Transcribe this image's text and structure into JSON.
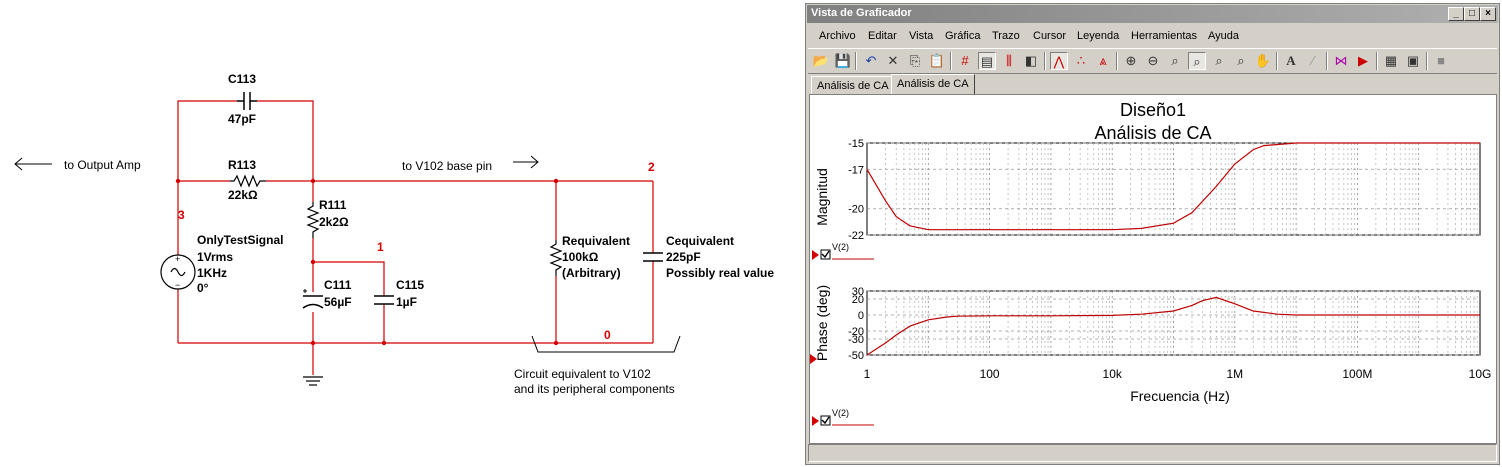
{
  "schematic": {
    "to_output_amp": "to Output Amp",
    "to_v102": "to V102 base pin",
    "circuit_note_1": "Circuit equivalent to V102",
    "circuit_note_2": "and its peripheral components",
    "nodes": {
      "n3": "3",
      "n1": "1",
      "n2": "2",
      "n0": "0"
    },
    "c113": {
      "name": "C113",
      "value": "47pF"
    },
    "r113": {
      "name": "R113",
      "value": "22kΩ"
    },
    "r111": {
      "name": "R111",
      "value": "2k2Ω"
    },
    "c111": {
      "name": "C111",
      "value": "56µF"
    },
    "c115": {
      "name": "C115",
      "value": "1µF"
    },
    "source": {
      "name": "OnlyTestSignal",
      "amp": "1Vrms",
      "freq": "1KHz",
      "phase": "0°"
    },
    "requiv": {
      "name": "Requivalent",
      "value": "100kΩ",
      "note": "(Arbitrary)"
    },
    "cequiv": {
      "name": "Cequivalent",
      "value": "225pF",
      "note": "Possibly real value"
    },
    "wire_color": "#d40000"
  },
  "window": {
    "title": "Vista de Graficador",
    "menu": [
      "Archivo",
      "Editar",
      "Vista",
      "Gráfica",
      "Trazo",
      "Cursor",
      "Leyenda",
      "Herramientas",
      "Ayuda"
    ],
    "tabs": [
      "Análisis de CA",
      "Análisis de CA"
    ],
    "active_tab": 1,
    "toolbar_icons": [
      "open-icon",
      "save-icon",
      "undo-icon",
      "cut-icon",
      "copy-icon",
      "paste-icon",
      "grid-icon",
      "legend-icon",
      "cursors-icon",
      "overlay-icon",
      "trace-line-icon",
      "markers-icon",
      "markers-lines-icon",
      "zoom-in-icon",
      "zoom-out-icon",
      "zoom-fit-icon",
      "zoom-x-icon",
      "zoom-y-icon",
      "zoom-area-icon",
      "pan-icon",
      "text-icon",
      "export-icon",
      "trace-props-icon",
      "reverse-icon",
      "print-preview-icon",
      "print-icon",
      "stop-icon"
    ]
  },
  "plot": {
    "title1": "Diseño1",
    "title2": "Análisis de CA",
    "mag_ylabel": "Magnitud",
    "phase_ylabel": "Phase (deg)",
    "xlabel": "Frecuencia (Hz)",
    "legend": "V(2)"
  },
  "chart_data": [
    {
      "type": "line",
      "title": "Diseño1 Análisis de CA",
      "xlabel": "Frecuencia (Hz)",
      "ylabel": "Magnitud",
      "xscale": "log",
      "xlim": [
        1,
        10000000000
      ],
      "ylim": [
        -22,
        -15
      ],
      "yticks": [
        -15,
        -17,
        -20,
        -22
      ],
      "grid": true,
      "series": [
        {
          "name": "V(2)",
          "color": "#c00000",
          "x": [
            1,
            2,
            3,
            5,
            10,
            20,
            100,
            1000,
            10000,
            30000,
            100000,
            200000,
            500000,
            1000000,
            2000000,
            3000000,
            10000000,
            100000000,
            1000000000,
            10000000000
          ],
          "y": [
            -17.0,
            -19.4,
            -20.6,
            -21.3,
            -21.6,
            -21.6,
            -21.6,
            -21.6,
            -21.6,
            -21.5,
            -21.1,
            -20.3,
            -18.3,
            -16.6,
            -15.5,
            -15.2,
            -15.0,
            -15.0,
            -15.0,
            -15.0
          ]
        }
      ]
    },
    {
      "type": "line",
      "xlabel": "Frecuencia (Hz)",
      "ylabel": "Phase (deg)",
      "xscale": "log",
      "xlim": [
        1,
        10000000000
      ],
      "ylim": [
        -50,
        30
      ],
      "yticks": [
        30,
        20,
        0,
        -20,
        -30,
        -50
      ],
      "grid": true,
      "series": [
        {
          "name": "V(2)",
          "color": "#c00000",
          "x": [
            1,
            2,
            3,
            5,
            10,
            20,
            30,
            100,
            1000,
            10000,
            30000,
            100000,
            200000,
            300000,
            500000,
            1000000,
            2000000,
            5000000,
            10000000,
            100000000,
            10000000000
          ],
          "y": [
            -50,
            -35,
            -25,
            -14,
            -6,
            -2.5,
            -1.5,
            -1,
            -1,
            -0.5,
            1,
            5,
            12,
            18,
            22,
            14,
            5,
            1,
            0,
            0,
            0
          ]
        }
      ]
    }
  ],
  "xticks": [
    "1",
    "100",
    "10k",
    "1M",
    "100M",
    "10G"
  ]
}
